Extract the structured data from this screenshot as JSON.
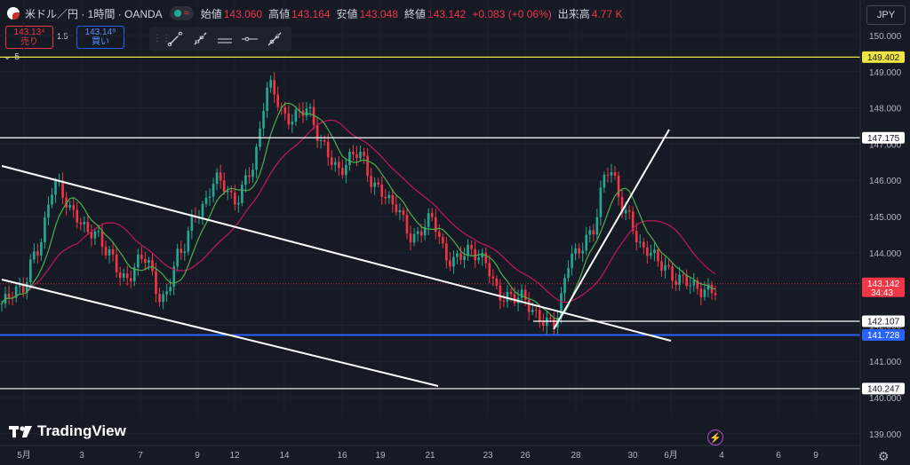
{
  "header": {
    "symbol": "米ドル／円 · 1時間 · OANDA",
    "ohlc": [
      {
        "label": "始値",
        "value": "143.060"
      },
      {
        "label": "高値",
        "value": "143.164"
      },
      {
        "label": "安値",
        "value": "143.048"
      },
      {
        "label": "終値",
        "value": "143.142"
      },
      {
        "label": "",
        "value": "+0.083 (+0.06%)"
      },
      {
        "label": "出来高",
        "value": "4.77 K"
      }
    ],
    "currency": "JPY"
  },
  "trade": {
    "sell_price": "143.13⁴",
    "sell_label": "売り",
    "spread": "1.5",
    "buy_price": "143.14⁹",
    "buy_label": "買い"
  },
  "collapse_count": "5",
  "brand": "TradingView",
  "colors": {
    "background": "#161a25",
    "up": "#22ab94",
    "down": "#f23645",
    "ma_short": "#4caf50",
    "ma_long": "#c2185b",
    "yellow_line": "#f0e442",
    "blue_line": "#2962ff"
  },
  "chart_data": {
    "type": "line",
    "ylim": [
      138.65,
      150.42
    ],
    "y_ticks": [
      "150.000",
      "149.000",
      "148.000",
      "147.000",
      "146.000",
      "145.000",
      "144.000",
      "143.000",
      "142.000",
      "141.000",
      "140.000",
      "139.000"
    ],
    "x_ticks": [
      "5月",
      "3",
      "7",
      "9",
      "12",
      "14",
      "16",
      "19",
      "21",
      "23",
      "26",
      "28",
      "30",
      "6月",
      "4",
      "6",
      "9"
    ],
    "price_series": {
      "name": "USDJPY",
      "points": [
        [
          0,
          142.6
        ],
        [
          2,
          142.9
        ],
        [
          3,
          144.2
        ],
        [
          4,
          145.8
        ],
        [
          5,
          145.2
        ],
        [
          6,
          144.5
        ],
        [
          7,
          144.0
        ],
        [
          8,
          143.3
        ],
        [
          9,
          143.8
        ],
        [
          10,
          142.8
        ],
        [
          11,
          143.9
        ],
        [
          12,
          145.2
        ],
        [
          13,
          146.0
        ],
        [
          14,
          145.4
        ],
        [
          15,
          146.4
        ],
        [
          16,
          148.5
        ],
        [
          17,
          147.8
        ],
        [
          18,
          147.9
        ],
        [
          19,
          147.0
        ],
        [
          20,
          146.3
        ],
        [
          21,
          146.7
        ],
        [
          22,
          145.9
        ],
        [
          23,
          145.2
        ],
        [
          24,
          144.5
        ],
        [
          25,
          144.9
        ],
        [
          26,
          143.8
        ],
        [
          27,
          144.1
        ],
        [
          28,
          143.7
        ],
        [
          29,
          142.9
        ],
        [
          30,
          142.7
        ],
        [
          31,
          142.3
        ],
        [
          32,
          142.1
        ],
        [
          33,
          143.9
        ],
        [
          34,
          144.6
        ],
        [
          35,
          146.2
        ],
        [
          36,
          145.2
        ],
        [
          37,
          144.0
        ],
        [
          38,
          143.7
        ],
        [
          39,
          143.3
        ],
        [
          40,
          142.9
        ],
        [
          41,
          143.1
        ]
      ]
    },
    "lines": {
      "yellow": 149.402,
      "white_upper": 147.175,
      "white_lower": 142.107,
      "blue": 141.728,
      "white_bottom": 140.247,
      "last_price": 143.142
    },
    "price_labels": [
      {
        "value": "149.402",
        "kind": "yellow"
      },
      {
        "value": "147.175",
        "kind": "white"
      },
      {
        "value": "143.142",
        "kind": "last",
        "countdown": "34:43"
      },
      {
        "value": "142.107",
        "kind": "white"
      },
      {
        "value": "141.728",
        "kind": "blue"
      },
      {
        "value": "140.247",
        "kind": "white"
      }
    ]
  }
}
